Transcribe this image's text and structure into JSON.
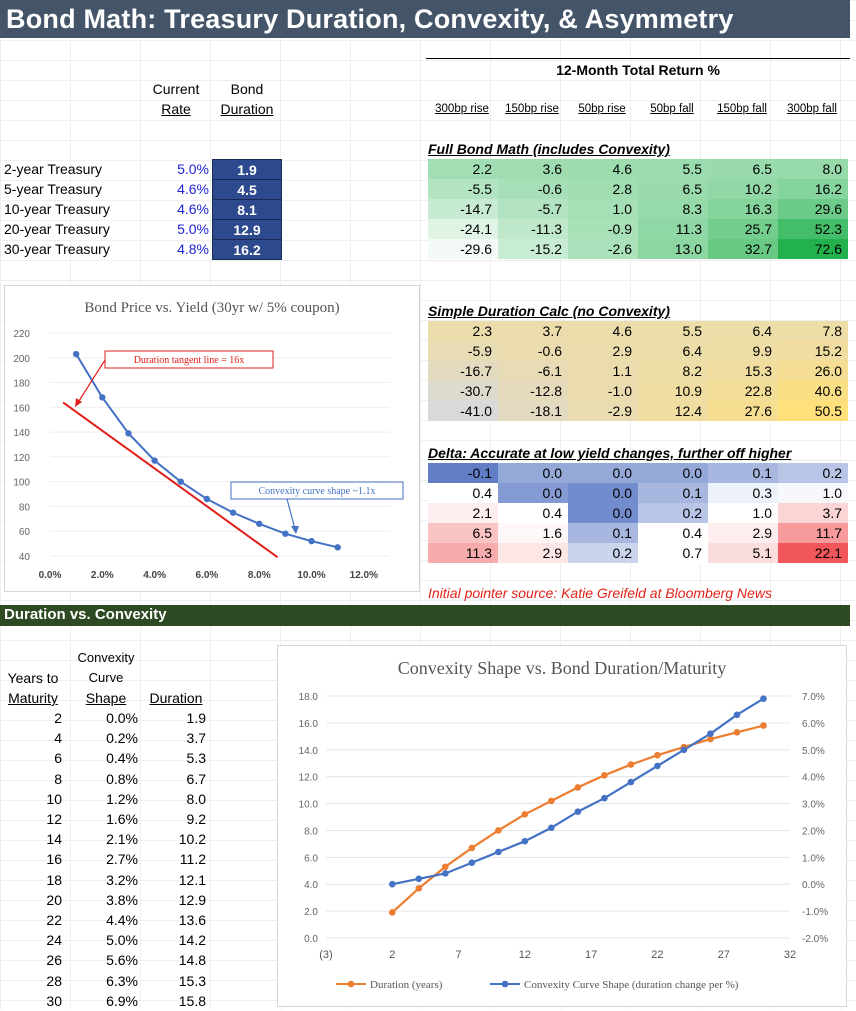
{
  "title": "Bond Math: Treasury Duration, Convexity, & Asymmetry",
  "top_table": {
    "col_rate": [
      "Current",
      "Rate"
    ],
    "col_dur": [
      "Bond",
      "Duration"
    ],
    "rows": [
      {
        "name": "2-year Treasury",
        "rate": "5.0%",
        "dur": "1.9"
      },
      {
        "name": "5-year Treasury",
        "rate": "4.6%",
        "dur": "4.5"
      },
      {
        "name": "10-year Treasury",
        "rate": "4.6%",
        "dur": "8.1"
      },
      {
        "name": "20-year Treasury",
        "rate": "5.0%",
        "dur": "12.9"
      },
      {
        "name": "30-year Treasury",
        "rate": "4.8%",
        "dur": "16.2"
      }
    ]
  },
  "returns": {
    "title": "12-Month Total Return %",
    "scenarios": [
      "300bp rise",
      "150bp rise",
      "50bp rise",
      "50bp fall",
      "150bp fall",
      "300bp fall"
    ],
    "full_title": "Full Bond Math (includes Convexity)",
    "full": [
      [
        "2.2",
        "3.6",
        "4.6",
        "5.5",
        "6.5",
        "8.0"
      ],
      [
        "-5.5",
        "-0.6",
        "2.8",
        "6.5",
        "10.2",
        "16.2"
      ],
      [
        "-14.7",
        "-5.7",
        "1.0",
        "8.3",
        "16.3",
        "29.6"
      ],
      [
        "-24.1",
        "-11.3",
        "-0.9",
        "11.3",
        "25.7",
        "52.3"
      ],
      [
        "-29.6",
        "-15.2",
        "-2.6",
        "13.0",
        "32.7",
        "72.6"
      ]
    ],
    "simple_title": "Simple Duration Calc (no Convexity)",
    "simple": [
      [
        "2.3",
        "3.7",
        "4.6",
        "5.5",
        "6.4",
        "7.8"
      ],
      [
        "-5.9",
        "-0.6",
        "2.9",
        "6.4",
        "9.9",
        "15.2"
      ],
      [
        "-16.7",
        "-6.1",
        "1.1",
        "8.2",
        "15.3",
        "26.0"
      ],
      [
        "-30.7",
        "-12.8",
        "-1.0",
        "10.9",
        "22.8",
        "40.6"
      ],
      [
        "-41.0",
        "-18.1",
        "-2.9",
        "12.4",
        "27.6",
        "50.5"
      ]
    ],
    "delta_title": "Delta: Accurate at low yield changes, further off higher",
    "delta": [
      [
        "-0.1",
        "0.0",
        "0.0",
        "0.0",
        "0.1",
        "0.2"
      ],
      [
        "0.4",
        "0.0",
        "0.0",
        "0.1",
        "0.3",
        "1.0"
      ],
      [
        "2.1",
        "0.4",
        "0.0",
        "0.2",
        "1.0",
        "3.7"
      ],
      [
        "6.5",
        "1.6",
        "0.1",
        "0.4",
        "2.9",
        "11.7"
      ],
      [
        "11.3",
        "2.9",
        "0.2",
        "0.7",
        "5.1",
        "22.1"
      ]
    ],
    "source": "Initial pointer source: Katie Greifeld at Bloomberg News",
    "colors": {
      "green_max": "#22b14c",
      "green_min": "#ffffff",
      "yellow_max": "#ffe07a",
      "grey_min": "#d9d9d9",
      "delta_blue": "#4f6fc0",
      "delta_red": "#f0565a"
    }
  },
  "chart1": {
    "title": "Bond Price vs. Yield (30yr w/ 5% coupon)",
    "annot_tangent": "Duration tangent  line = 16x",
    "annot_convexity": "Convexity  curve shape ~1.1x",
    "yticks": [
      "220",
      "200",
      "180",
      "160",
      "140",
      "120",
      "100",
      "80",
      "60",
      "40"
    ],
    "xticks": [
      "0.0%",
      "2.0%",
      "4.0%",
      "6.0%",
      "8.0%",
      "10.0%",
      "12.0%"
    ]
  },
  "chart_data": [
    {
      "type": "line",
      "title": "Bond Price vs. Yield (30yr w/ 5% coupon)",
      "xlabel": "",
      "ylabel": "",
      "xlim": [
        0,
        0.13
      ],
      "ylim": [
        40,
        220
      ],
      "series": [
        {
          "x": [
            0.01,
            0.02,
            0.03,
            0.04,
            0.05,
            0.06,
            0.07,
            0.08,
            0.09,
            0.1,
            0.11
          ],
          "y": [
            203,
            168,
            139,
            117,
            100,
            86,
            75,
            66,
            58,
            52,
            47
          ]
        },
        {
          "x": [
            0.005,
            0.087
          ],
          "y": [
            164,
            39
          ]
        }
      ]
    },
    {
      "type": "line",
      "title": "Convexity Shape vs. Bond Duration/Maturity",
      "xlabel": "",
      "ylabel": "",
      "xlim": [
        -3,
        32
      ],
      "ylim": [
        0,
        18
      ],
      "y2lim": [
        -0.02,
        0.07
      ],
      "x": [
        2,
        4,
        6,
        8,
        10,
        12,
        14,
        16,
        18,
        20,
        22,
        24,
        26,
        28,
        30
      ],
      "series": [
        {
          "name": "Duration (years)",
          "axis": "left",
          "values": [
            1.9,
            3.7,
            5.3,
            6.7,
            8.0,
            9.2,
            10.2,
            11.2,
            12.1,
            12.9,
            13.6,
            14.2,
            14.8,
            15.3,
            15.8
          ]
        },
        {
          "name": "Convexity Curve Shape (duration change per %)",
          "axis": "right",
          "values": [
            0.0,
            0.002,
            0.004,
            0.008,
            0.012,
            0.016,
            0.021,
            0.027,
            0.032,
            0.038,
            0.044,
            0.05,
            0.056,
            0.063,
            0.069
          ]
        }
      ]
    }
  ],
  "section2": {
    "title": "Duration vs. Convexity",
    "col_years": [
      "Years to",
      "Maturity"
    ],
    "col_conv": [
      "Convexity",
      "Curve",
      "Shape"
    ],
    "col_dur": "Duration",
    "rows": [
      [
        "2",
        "0.0%",
        "1.9"
      ],
      [
        "4",
        "0.2%",
        "3.7"
      ],
      [
        "6",
        "0.4%",
        "5.3"
      ],
      [
        "8",
        "0.8%",
        "6.7"
      ],
      [
        "10",
        "1.2%",
        "8.0"
      ],
      [
        "12",
        "1.6%",
        "9.2"
      ],
      [
        "14",
        "2.1%",
        "10.2"
      ],
      [
        "16",
        "2.7%",
        "11.2"
      ],
      [
        "18",
        "3.2%",
        "12.1"
      ],
      [
        "20",
        "3.8%",
        "12.9"
      ],
      [
        "22",
        "4.4%",
        "13.6"
      ],
      [
        "24",
        "5.0%",
        "14.2"
      ],
      [
        "26",
        "5.6%",
        "14.8"
      ],
      [
        "28",
        "6.3%",
        "15.3"
      ],
      [
        "30",
        "6.9%",
        "15.8"
      ]
    ]
  },
  "chart2": {
    "title": "Convexity Shape vs. Bond Duration/Maturity",
    "yticks": [
      "18.0",
      "16.0",
      "14.0",
      "12.0",
      "10.0",
      "8.0",
      "6.0",
      "4.0",
      "2.0",
      "0.0"
    ],
    "y2ticks": [
      "7.0%",
      "6.0%",
      "5.0%",
      "4.0%",
      "3.0%",
      "2.0%",
      "1.0%",
      "0.0%",
      "-1.0%",
      "-2.0%"
    ],
    "xticks": [
      "(3)",
      "2",
      "7",
      "12",
      "17",
      "22",
      "27",
      "32"
    ],
    "legend1": "Duration (years)",
    "legend2": "Convexity Curve Shape (duration change per %)",
    "color1": "#ed7d31",
    "color2": "#4472c4"
  }
}
